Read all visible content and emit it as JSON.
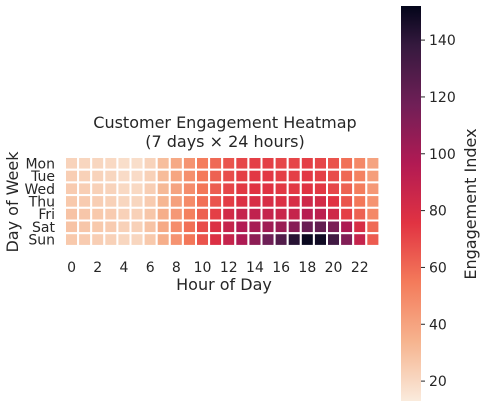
{
  "chart_data": {
    "type": "heatmap",
    "title": "Customer Engagement Heatmap",
    "subtitle": "(7 days × 24 hours)",
    "xlabel": "Hour of Day",
    "ylabel": "Day of Week",
    "colorbar_label": "Engagement Index",
    "x_categories": [
      0,
      1,
      2,
      3,
      4,
      5,
      6,
      7,
      8,
      9,
      10,
      11,
      12,
      13,
      14,
      15,
      16,
      17,
      18,
      19,
      20,
      21,
      22,
      23
    ],
    "x_tick_labels": [
      "0",
      "2",
      "4",
      "6",
      "8",
      "10",
      "12",
      "14",
      "16",
      "18",
      "20",
      "22"
    ],
    "y_categories": [
      "Mon",
      "Tue",
      "Wed",
      "Thu",
      "Fri",
      "Sat",
      "Sun"
    ],
    "colorbar_ticks": [
      20,
      40,
      60,
      80,
      100,
      120,
      140
    ],
    "color_range": [
      13,
      152
    ],
    "colormap": "rocket_r",
    "grid_lines": "white",
    "values": [
      [
        22,
        21,
        21,
        20,
        18,
        18,
        22,
        30,
        38,
        46,
        54,
        60,
        66,
        70,
        72,
        72,
        70,
        70,
        72,
        70,
        66,
        58,
        50,
        40
      ],
      [
        24,
        23,
        22,
        21,
        19,
        19,
        23,
        31,
        39,
        47,
        55,
        62,
        68,
        72,
        74,
        74,
        72,
        72,
        74,
        72,
        68,
        60,
        52,
        42
      ],
      [
        25,
        24,
        23,
        22,
        20,
        20,
        24,
        32,
        40,
        48,
        56,
        63,
        70,
        74,
        76,
        76,
        74,
        74,
        76,
        74,
        70,
        62,
        54,
        44
      ],
      [
        26,
        25,
        24,
        23,
        21,
        21,
        25,
        33,
        41,
        49,
        58,
        66,
        73,
        78,
        80,
        80,
        78,
        80,
        84,
        82,
        76,
        66,
        56,
        46
      ],
      [
        28,
        27,
        26,
        25,
        23,
        23,
        27,
        36,
        44,
        53,
        62,
        72,
        82,
        88,
        90,
        88,
        86,
        88,
        94,
        92,
        84,
        72,
        62,
        50
      ],
      [
        28,
        27,
        26,
        25,
        23,
        23,
        28,
        38,
        48,
        58,
        68,
        78,
        88,
        96,
        100,
        102,
        104,
        110,
        120,
        122,
        114,
        98,
        80,
        60
      ],
      [
        26,
        25,
        24,
        23,
        21,
        21,
        26,
        36,
        46,
        56,
        66,
        78,
        88,
        98,
        108,
        118,
        128,
        142,
        150,
        148,
        134,
        112,
        88,
        64
      ]
    ]
  }
}
